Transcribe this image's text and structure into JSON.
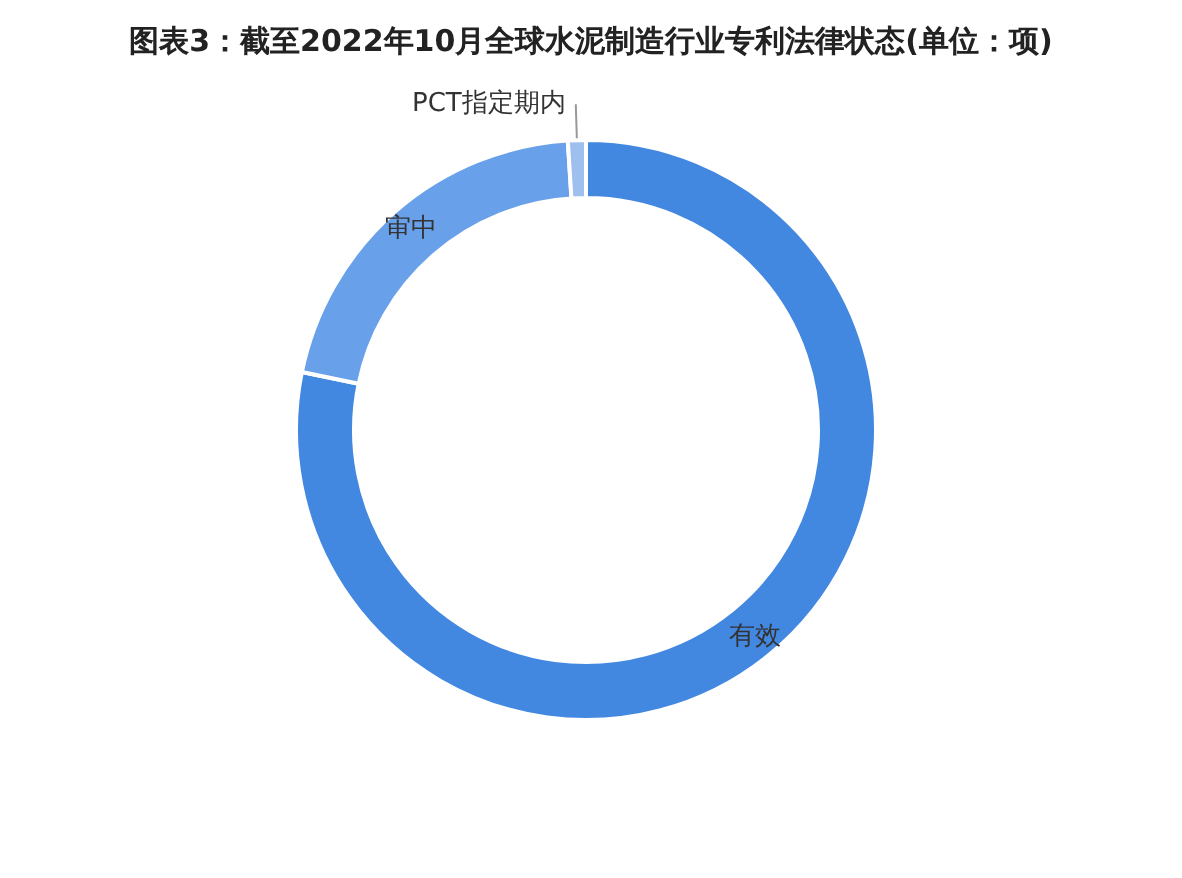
{
  "chart_data": {
    "type": "donut",
    "title": "图表3：截至2022年10月全球水泥制造行业专利法律状态(单位：项)",
    "categories": [
      "有效",
      "审中",
      "PCT指定期内"
    ],
    "values": [
      78.2,
      20.8,
      1.0
    ],
    "colors": [
      "#4287e0",
      "#69a0ea",
      "#9fc0ef"
    ],
    "legend": false
  }
}
